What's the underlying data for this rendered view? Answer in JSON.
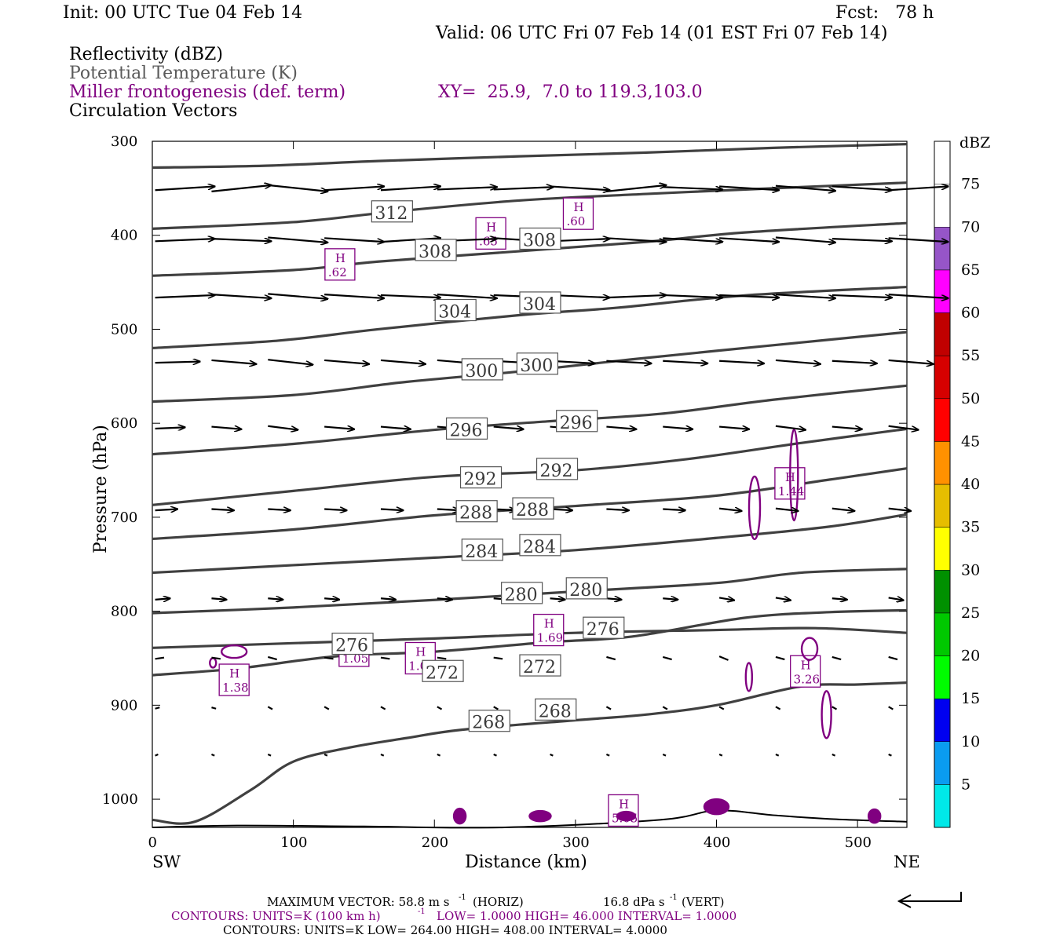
{
  "header": {
    "init": "Init: 00 UTC Tue 04 Feb 14",
    "fcst": "Fcst:   78 h",
    "valid": "Valid: 06 UTC Fri 07 Feb 14 (01 EST Fri 07 Feb 14)"
  },
  "fields": {
    "reflectivity": "Reflectivity (dBZ)",
    "theta": "Potential Temperature (K)",
    "miller": "Miller frontogenesis (def. term)",
    "xy": "XY=  25.9,  7.0 to 119.3,103.0",
    "circulation": "Circulation Vectors"
  },
  "colors": {
    "theta": "#404040",
    "frontogenesis": "#800080",
    "vectors": "#000000",
    "frame": "#000000"
  },
  "chart_data": {
    "type": "cross-section",
    "xlabel": "Distance (km)",
    "ylabel": "Pressure (hPa)",
    "xlim": [
      0,
      535
    ],
    "ylim": [
      1030,
      300
    ],
    "x_ticks": [
      0,
      100,
      200,
      300,
      400,
      500
    ],
    "y_ticks": [
      300,
      400,
      500,
      600,
      700,
      800,
      900,
      1000
    ],
    "left_end": "SW",
    "right_end": "NE",
    "colorbar": {
      "unit": "dBZ",
      "levels": [
        5,
        10,
        15,
        20,
        25,
        30,
        35,
        40,
        45,
        50,
        55,
        60,
        65,
        70,
        75
      ],
      "colors": [
        "#00e8e8",
        "#0a9cf0",
        "#0000f0",
        "#00fc00",
        "#00c800",
        "#009000",
        "#ffff00",
        "#e6be00",
        "#ff9100",
        "#ff0000",
        "#d60000",
        "#c00000",
        "#ff00ff",
        "#9655c8",
        "#ffffff"
      ]
    },
    "theta_contours": [
      {
        "value": 312,
        "pts": [
          [
            0,
            328
          ],
          [
            80,
            326
          ],
          [
            160,
            321
          ],
          [
            260,
            316
          ],
          [
            350,
            312
          ],
          [
            440,
            307
          ],
          [
            535,
            303
          ]
        ]
      },
      {
        "value": 308,
        "pts": [
          [
            0,
            393
          ],
          [
            100,
            386
          ],
          [
            170,
            375
          ],
          [
            260,
            363
          ],
          [
            350,
            356
          ],
          [
            440,
            350
          ],
          [
            535,
            344
          ]
        ]
      },
      {
        "value": 304,
        "pts": [
          [
            0,
            443
          ],
          [
            100,
            437
          ],
          [
            160,
            428
          ],
          [
            260,
            417
          ],
          [
            350,
            407
          ],
          [
            420,
            397
          ],
          [
            535,
            387
          ]
        ]
      },
      {
        "value": 300,
        "pts": [
          [
            0,
            520
          ],
          [
            90,
            512
          ],
          [
            160,
            500
          ],
          [
            260,
            485
          ],
          [
            330,
            477
          ],
          [
            420,
            464
          ],
          [
            535,
            455
          ]
        ]
      },
      {
        "value": 296,
        "pts": [
          [
            0,
            577
          ],
          [
            100,
            570
          ],
          [
            180,
            556
          ],
          [
            260,
            545
          ],
          [
            340,
            532
          ],
          [
            440,
            517
          ],
          [
            535,
            503
          ]
        ]
      },
      {
        "value": 292,
        "pts": [
          [
            0,
            633
          ],
          [
            100,
            622
          ],
          [
            200,
            607
          ],
          [
            280,
            598
          ],
          [
            360,
            590
          ],
          [
            440,
            575
          ],
          [
            535,
            560
          ]
        ]
      },
      {
        "value": 288,
        "pts": [
          [
            0,
            687
          ],
          [
            100,
            672
          ],
          [
            200,
            657
          ],
          [
            300,
            650
          ],
          [
            380,
            638
          ],
          [
            460,
            621
          ],
          [
            535,
            606
          ]
        ]
      },
      {
        "value": 284,
        "pts": [
          [
            0,
            723
          ],
          [
            100,
            713
          ],
          [
            200,
            698
          ],
          [
            300,
            688
          ],
          [
            400,
            677
          ],
          [
            480,
            660
          ],
          [
            535,
            648
          ]
        ]
      },
      {
        "value": 280,
        "pts": [
          [
            0,
            759
          ],
          [
            100,
            751
          ],
          [
            200,
            743
          ],
          [
            300,
            735
          ],
          [
            400,
            722
          ],
          [
            480,
            710
          ],
          [
            535,
            697
          ]
        ]
      },
      {
        "value": 276,
        "pts": [
          [
            0,
            802
          ],
          [
            100,
            796
          ],
          [
            200,
            788
          ],
          [
            300,
            779
          ],
          [
            400,
            770
          ],
          [
            460,
            759
          ],
          [
            535,
            755
          ]
        ]
      },
      {
        "value": 272,
        "pts": [
          [
            0,
            839
          ],
          [
            100,
            834
          ],
          [
            200,
            829
          ],
          [
            300,
            823
          ],
          [
            400,
            820
          ],
          [
            470,
            818
          ],
          [
            535,
            823
          ]
        ]
      },
      {
        "value": 268,
        "pts": [
          [
            0,
            868
          ],
          [
            60,
            861
          ],
          [
            130,
            848
          ],
          [
            200,
            843
          ],
          [
            280,
            833
          ],
          [
            340,
            827
          ],
          [
            420,
            807
          ],
          [
            480,
            801
          ],
          [
            535,
            799
          ]
        ]
      },
      {
        "value": 264,
        "pts": [
          [
            0,
            1022
          ],
          [
            30,
            1024
          ],
          [
            70,
            990
          ],
          [
            100,
            960
          ],
          [
            140,
            945
          ],
          [
            180,
            935
          ],
          [
            220,
            926
          ],
          [
            300,
            916
          ],
          [
            350,
            910
          ],
          [
            400,
            900
          ],
          [
            460,
            880
          ],
          [
            500,
            878
          ],
          [
            535,
            876
          ]
        ]
      }
    ],
    "theta_labels": [
      {
        "text": "312",
        "x": 170,
        "p": 375
      },
      {
        "text": "308",
        "x": 201,
        "p": 416
      },
      {
        "text": "308",
        "x": 275,
        "p": 404
      },
      {
        "text": "304",
        "x": 215,
        "p": 480
      },
      {
        "text": "304",
        "x": 275,
        "p": 472
      },
      {
        "text": "300",
        "x": 234,
        "p": 543
      },
      {
        "text": "300",
        "x": 273,
        "p": 537
      },
      {
        "text": "296",
        "x": 223,
        "p": 606
      },
      {
        "text": "296",
        "x": 301,
        "p": 598
      },
      {
        "text": "292",
        "x": 233,
        "p": 658
      },
      {
        "text": "292",
        "x": 287,
        "p": 649
      },
      {
        "text": "288",
        "x": 230,
        "p": 694
      },
      {
        "text": "288",
        "x": 270,
        "p": 691
      },
      {
        "text": "284",
        "x": 234,
        "p": 735
      },
      {
        "text": "284",
        "x": 275,
        "p": 730
      },
      {
        "text": "280",
        "x": 262,
        "p": 781
      },
      {
        "text": "280",
        "x": 308,
        "p": 776
      },
      {
        "text": "276",
        "x": 142,
        "p": 835
      },
      {
        "text": "276",
        "x": 320,
        "p": 818
      },
      {
        "text": "272",
        "x": 206,
        "p": 864
      },
      {
        "text": "272",
        "x": 275,
        "p": 858
      },
      {
        "text": "268",
        "x": 239,
        "p": 917
      },
      {
        "text": "268",
        "x": 286,
        "p": 905
      }
    ],
    "frontogenesis_maxima": [
      {
        "label": "H",
        "value": ".60",
        "x": 302,
        "p": 377
      },
      {
        "label": "H",
        "value": ".65",
        "x": 240,
        "p": 398
      },
      {
        "label": "H",
        "value": ".62",
        "x": 133,
        "p": 431
      },
      {
        "label": "H",
        "value": "1.44",
        "x": 452,
        "p": 664
      },
      {
        "label": "H",
        "value": "1.69",
        "x": 281,
        "p": 820
      },
      {
        "label": "H",
        "value": "1.05",
        "x": 143,
        "p": 842
      },
      {
        "label": "H",
        "value": "1.03",
        "x": 190,
        "p": 850
      },
      {
        "label": "H",
        "value": "1.38",
        "x": 58,
        "p": 873
      },
      {
        "label": "H",
        "value": "3.26",
        "x": 463,
        "p": 864
      },
      {
        "label": "H",
        "value": "5.05",
        "x": 334,
        "p": 1012
      }
    ],
    "vector_rows": [
      {
        "p": 350,
        "u": 40,
        "w": [
          3,
          5,
          -5,
          3,
          3,
          2,
          2,
          -3,
          5,
          -2,
          -3,
          -4,
          -3,
          3
        ]
      },
      {
        "p": 405,
        "u": 40,
        "w": [
          2,
          -2,
          -4,
          -3,
          3,
          2,
          -3,
          2,
          -3,
          -3,
          -3,
          -4,
          -2,
          -3
        ]
      },
      {
        "p": 465,
        "u": 40,
        "w": [
          2,
          -3,
          -4,
          -3,
          -2,
          -3,
          -2,
          -2,
          2,
          -2,
          -2,
          -3,
          -2,
          -3
        ]
      },
      {
        "p": 535,
        "u": 30,
        "w": [
          1,
          -3,
          -4,
          -3,
          -3,
          -3,
          -2,
          -2,
          -2,
          -2,
          -2,
          -3,
          -2,
          -3
        ]
      },
      {
        "p": 605,
        "u": 20,
        "w": [
          1,
          -2,
          -3,
          -2,
          -2,
          -2,
          -2,
          -2,
          -2,
          -2,
          -2,
          -3,
          -2,
          -3
        ]
      },
      {
        "p": 692,
        "u": 15,
        "w": [
          1,
          -1,
          -1,
          -1,
          -1,
          -1,
          -1,
          -1,
          -1,
          -1,
          -2,
          -2,
          -2,
          -2
        ]
      },
      {
        "p": 787,
        "u": 10,
        "w": [
          1,
          -1,
          -1,
          -1,
          -1,
          -1,
          -1,
          -1,
          -1,
          -1,
          -2,
          -2,
          -1,
          -2
        ]
      },
      {
        "p": 850,
        "u": 6,
        "w": [
          1,
          -1,
          -2,
          -1,
          -1,
          -1,
          -1,
          -1,
          -2,
          -2,
          -3,
          -2,
          -2,
          -2
        ]
      },
      {
        "p": 903,
        "u": 3,
        "w": [
          1,
          -1,
          -2,
          -2,
          -2,
          -2,
          -2,
          -2,
          -2,
          -2,
          -2,
          -2,
          -2,
          -2
        ]
      },
      {
        "p": 953,
        "u": 2,
        "w": [
          1,
          -1,
          -1,
          -1,
          -1,
          -1,
          -1,
          -1,
          -1,
          -1,
          -1,
          -1,
          -1,
          -1
        ]
      }
    ],
    "footer": {
      "max_vector_label": "MAXIMUM VECTOR:  58.8 m s",
      "max_vector_h": "(HORIZ)",
      "max_vector_v": "16.8 dPa s",
      "max_vector_v_unit": "(VERT)",
      "miller_contours_a": "CONTOURS:  UNITS=K (100 km h)",
      "miller_contours_b": "LOW=  1.0000      HIGH=  46.000      INTERVAL=   1.0000",
      "theta_contours": "CONTOURS:  UNITS=K  LOW=  264.00      HIGH=  408.00      INTERVAL=    4.0000",
      "superscript": "-1"
    }
  }
}
